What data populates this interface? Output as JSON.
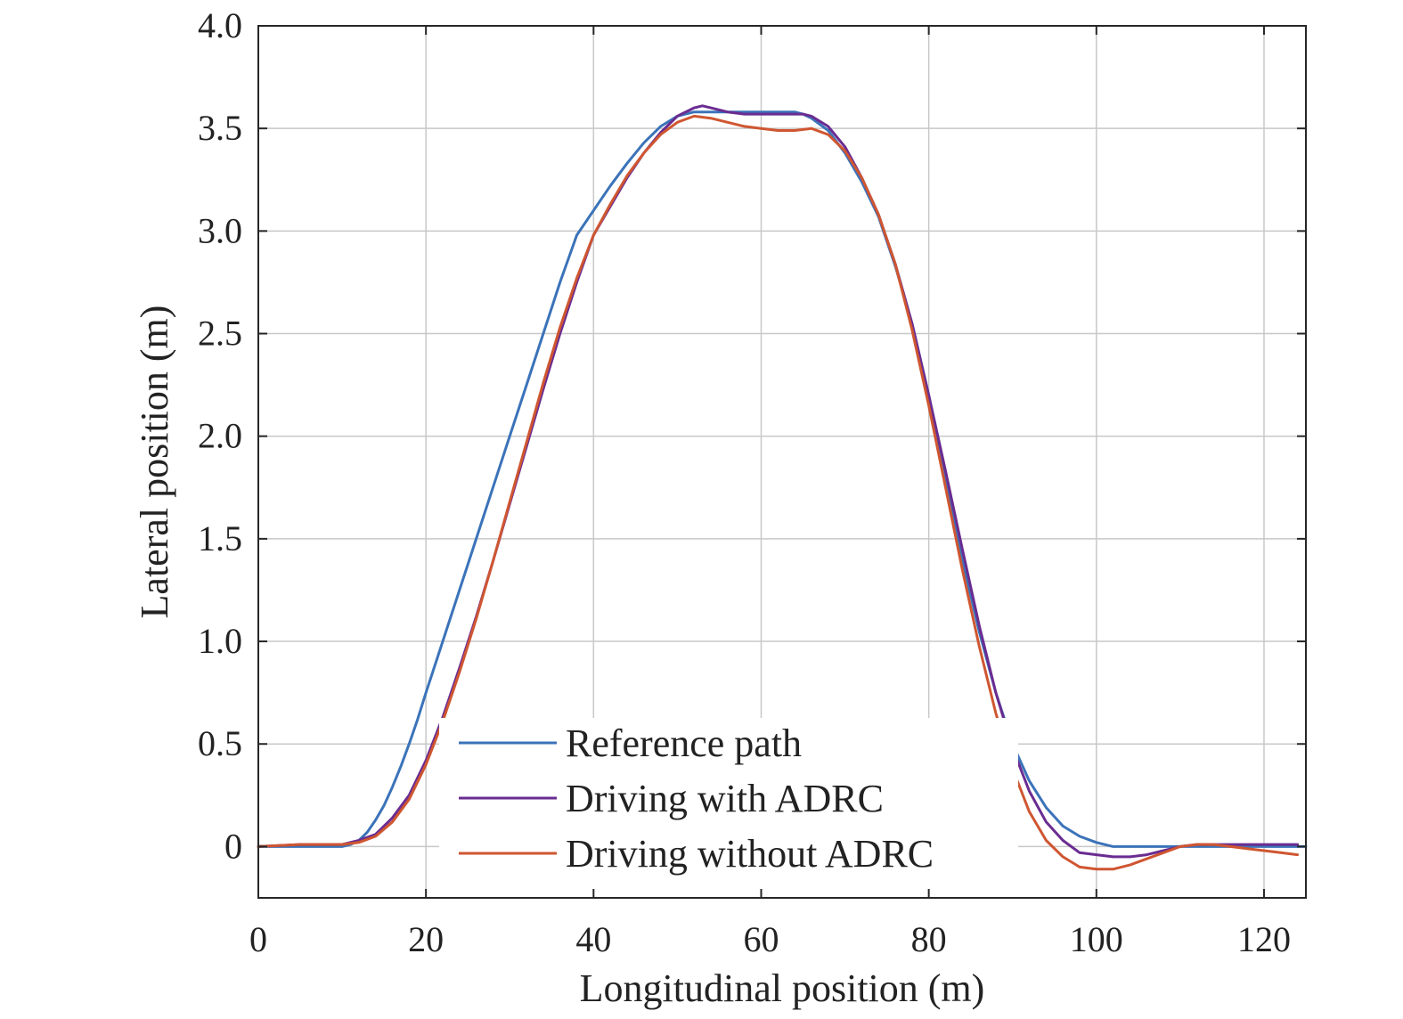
{
  "chart_data": {
    "type": "line",
    "xlabel": "Longitudinal position (m)",
    "ylabel": "Lateral position (m)",
    "xlim": [
      0,
      125
    ],
    "ylim": [
      -0.25,
      4.0
    ],
    "xticks": [
      0,
      20,
      40,
      60,
      80,
      100,
      120
    ],
    "xtick_labels": [
      "0",
      "20",
      "40",
      "60",
      "80",
      "100",
      "120"
    ],
    "yticks": [
      0,
      0.5,
      1.0,
      1.5,
      2.0,
      2.5,
      3.0,
      3.5,
      4.0
    ],
    "ytick_labels": [
      "0",
      "0.5",
      "1.0",
      "1.5",
      "2.0",
      "2.5",
      "3.0",
      "3.5",
      "4.0"
    ],
    "grid": true,
    "legend_position": "bottom-center",
    "series": [
      {
        "name": "Reference path",
        "color": "#3b73b9",
        "x": [
          0,
          5,
          10,
          11,
          12,
          13,
          14,
          15,
          16,
          17,
          18,
          19,
          20,
          22,
          24,
          26,
          28,
          30,
          32,
          34,
          36,
          38,
          40,
          42,
          44,
          46,
          48,
          50,
          52,
          54,
          56,
          58,
          60,
          62,
          64,
          65,
          66,
          68,
          70,
          72,
          74,
          76,
          78,
          80,
          82,
          84,
          86,
          88,
          90,
          92,
          94,
          96,
          98,
          100,
          102,
          104,
          106,
          110,
          115,
          120,
          125
        ],
        "y": [
          0,
          0,
          0,
          0.01,
          0.03,
          0.07,
          0.13,
          0.2,
          0.29,
          0.39,
          0.5,
          0.62,
          0.75,
          1.0,
          1.25,
          1.5,
          1.75,
          2.0,
          2.25,
          2.5,
          2.75,
          2.98,
          3.1,
          3.22,
          3.33,
          3.43,
          3.51,
          3.56,
          3.58,
          3.58,
          3.58,
          3.58,
          3.58,
          3.58,
          3.58,
          3.57,
          3.55,
          3.49,
          3.38,
          3.24,
          3.07,
          2.83,
          2.55,
          2.2,
          1.8,
          1.4,
          1.05,
          0.75,
          0.5,
          0.32,
          0.19,
          0.1,
          0.05,
          0.02,
          0.0,
          0.0,
          0.0,
          0.0,
          0.0,
          0.0,
          0.0
        ]
      },
      {
        "name": "Driving with ADRC",
        "color": "#6a2c91",
        "x": [
          0,
          5,
          10,
          12,
          14,
          16,
          18,
          20,
          22,
          24,
          26,
          28,
          30,
          32,
          34,
          36,
          38,
          40,
          42,
          44,
          46,
          48,
          50,
          52,
          53,
          54,
          56,
          58,
          60,
          62,
          64,
          65,
          66,
          68,
          70,
          72,
          74,
          76,
          78,
          80,
          82,
          84,
          86,
          88,
          90,
          92,
          94,
          96,
          98,
          100,
          102,
          104,
          106,
          108,
          110,
          112,
          114,
          116,
          118,
          120,
          122,
          124
        ],
        "y": [
          0,
          0.01,
          0.01,
          0.03,
          0.06,
          0.14,
          0.25,
          0.42,
          0.63,
          0.87,
          1.12,
          1.39,
          1.67,
          1.95,
          2.23,
          2.5,
          2.75,
          2.98,
          3.12,
          3.26,
          3.38,
          3.48,
          3.56,
          3.6,
          3.61,
          3.6,
          3.58,
          3.57,
          3.57,
          3.57,
          3.57,
          3.57,
          3.56,
          3.51,
          3.41,
          3.26,
          3.08,
          2.84,
          2.55,
          2.2,
          1.83,
          1.45,
          1.08,
          0.75,
          0.48,
          0.27,
          0.12,
          0.03,
          -0.03,
          -0.04,
          -0.05,
          -0.05,
          -0.04,
          -0.02,
          0.0,
          0.01,
          0.01,
          0.01,
          0.01,
          0.01,
          0.01,
          0.01
        ]
      },
      {
        "name": "Driving without ADRC",
        "color": "#cf5631",
        "x": [
          0,
          5,
          10,
          12,
          14,
          16,
          18,
          20,
          22,
          24,
          26,
          28,
          30,
          32,
          34,
          36,
          38,
          40,
          42,
          44,
          46,
          48,
          50,
          52,
          54,
          56,
          58,
          60,
          62,
          64,
          66,
          68,
          70,
          72,
          74,
          76,
          78,
          80,
          82,
          84,
          86,
          88,
          90,
          92,
          94,
          96,
          98,
          100,
          102,
          104,
          106,
          108,
          110,
          112,
          114,
          116,
          118,
          120,
          122,
          124
        ],
        "y": [
          0,
          0.01,
          0.01,
          0.02,
          0.05,
          0.12,
          0.23,
          0.4,
          0.61,
          0.85,
          1.11,
          1.39,
          1.68,
          1.97,
          2.26,
          2.53,
          2.77,
          2.98,
          3.13,
          3.27,
          3.38,
          3.47,
          3.53,
          3.56,
          3.55,
          3.53,
          3.51,
          3.5,
          3.49,
          3.49,
          3.5,
          3.47,
          3.39,
          3.26,
          3.08,
          2.84,
          2.52,
          2.15,
          1.75,
          1.35,
          0.98,
          0.65,
          0.38,
          0.17,
          0.03,
          -0.05,
          -0.1,
          -0.11,
          -0.11,
          -0.09,
          -0.06,
          -0.03,
          0.0,
          0.01,
          0.01,
          0.0,
          -0.01,
          -0.02,
          -0.03,
          -0.04
        ]
      }
    ]
  }
}
